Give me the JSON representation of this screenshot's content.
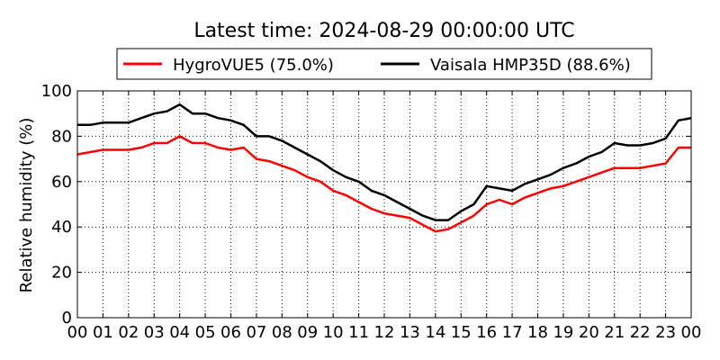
{
  "chart_data": {
    "type": "line",
    "title": "Latest time: 2024-08-29 00:00:00 UTC",
    "xlabel": "",
    "ylabel": "Relative humidity (%)",
    "x_ticks": [
      "00",
      "01",
      "02",
      "03",
      "04",
      "05",
      "06",
      "07",
      "08",
      "09",
      "10",
      "11",
      "12",
      "13",
      "14",
      "15",
      "16",
      "17",
      "18",
      "19",
      "20",
      "21",
      "22",
      "23",
      "00"
    ],
    "xlim": [
      0,
      24
    ],
    "ylim": [
      0,
      100
    ],
    "y_ticks": [
      0,
      20,
      40,
      60,
      80,
      100
    ],
    "grid": true,
    "legend_position": "top-center",
    "series": [
      {
        "name": "HygroVUE5 (75.0%)",
        "color": "#ff0000",
        "x": [
          0,
          0.5,
          1,
          1.5,
          2,
          2.5,
          3,
          3.5,
          4,
          4.5,
          5,
          5.5,
          6,
          6.5,
          7,
          7.5,
          8,
          8.5,
          9,
          9.5,
          10,
          10.5,
          11,
          11.5,
          12,
          12.5,
          13,
          13.5,
          14,
          14.5,
          15,
          15.5,
          16,
          16.5,
          17,
          17.5,
          18,
          18.5,
          19,
          19.5,
          20,
          20.5,
          21,
          21.5,
          22,
          22.5,
          23,
          23.5,
          24
        ],
        "values": [
          72,
          73,
          74,
          74,
          74,
          75,
          77,
          77,
          80,
          77,
          77,
          75,
          74,
          75,
          70,
          69,
          67,
          65,
          62,
          60,
          56,
          54,
          51,
          48,
          46,
          45,
          44,
          41,
          38,
          39,
          42,
          45,
          50,
          52,
          50,
          53,
          55,
          57,
          58,
          60,
          62,
          64,
          66,
          66,
          66,
          67,
          68,
          75,
          75
        ]
      },
      {
        "name": "Vaisala HMP35D (88.6%)",
        "color": "#000000",
        "x": [
          0,
          0.5,
          1,
          1.5,
          2,
          2.5,
          3,
          3.5,
          4,
          4.5,
          5,
          5.5,
          6,
          6.5,
          7,
          7.5,
          8,
          8.5,
          9,
          9.5,
          10,
          10.5,
          11,
          11.5,
          12,
          12.5,
          13,
          13.5,
          14,
          14.5,
          15,
          15.5,
          16,
          16.5,
          17,
          17.5,
          18,
          18.5,
          19,
          19.5,
          20,
          20.5,
          21,
          21.5,
          22,
          22.5,
          23,
          23.5,
          24
        ],
        "values": [
          85,
          85,
          86,
          86,
          86,
          88,
          90,
          91,
          94,
          90,
          90,
          88,
          87,
          85,
          80,
          80,
          78,
          75,
          72,
          69,
          65,
          62,
          60,
          56,
          54,
          51,
          48,
          45,
          43,
          43,
          47,
          50,
          58,
          57,
          56,
          59,
          61,
          63,
          66,
          68,
          71,
          73,
          77,
          76,
          76,
          77,
          79,
          87,
          88
        ]
      }
    ]
  }
}
